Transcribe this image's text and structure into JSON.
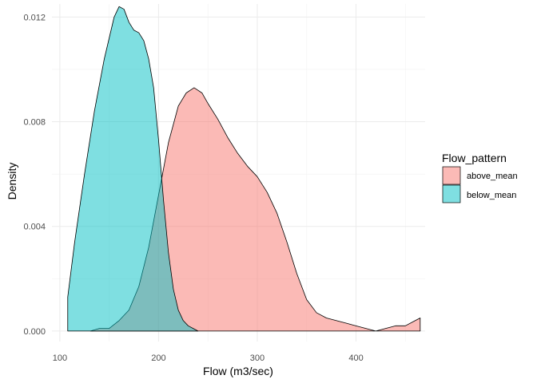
{
  "chart_data": {
    "type": "area",
    "title": "",
    "xlabel": "Flow (m3/sec)",
    "ylabel": "Density",
    "xlim": [
      92,
      470
    ],
    "ylim": [
      -0.0004,
      0.0125
    ],
    "x_ticks": [
      100,
      200,
      300,
      400
    ],
    "y_ticks": [
      0.0,
      0.004,
      0.008,
      0.012
    ],
    "y_tick_labels": [
      "0.000",
      "0.004",
      "0.008",
      "0.012"
    ],
    "grid": true,
    "legend": {
      "title": "Flow_pattern",
      "placement": "right"
    },
    "series": [
      {
        "name": "above_mean",
        "color": "#F8766D",
        "x": [
          131,
          140,
          150,
          160,
          170,
          180,
          190,
          200,
          210,
          220,
          228,
          236,
          244,
          250,
          260,
          270,
          280,
          290,
          300,
          310,
          320,
          330,
          340,
          350,
          360,
          370,
          380,
          390,
          400,
          410,
          420,
          430,
          440,
          450,
          460,
          465
        ],
        "y": [
          0.0,
          0.0001,
          0.0001,
          0.0004,
          0.0008,
          0.0017,
          0.0032,
          0.0052,
          0.0072,
          0.0086,
          0.0091,
          0.0093,
          0.0091,
          0.0087,
          0.0081,
          0.0074,
          0.0068,
          0.0063,
          0.0059,
          0.0053,
          0.0045,
          0.0034,
          0.0022,
          0.0012,
          0.0007,
          0.0005,
          0.0004,
          0.0003,
          0.0002,
          0.0001,
          0.0,
          0.0001,
          0.0002,
          0.0002,
          0.0004,
          0.0005
        ]
      },
      {
        "name": "below_mean",
        "color": "#00BFC4",
        "x": [
          108,
          115,
          125,
          135,
          145,
          155,
          160,
          165,
          170,
          175,
          180,
          185,
          190,
          195,
          200,
          205,
          210,
          215,
          220,
          225,
          230,
          235,
          240
        ],
        "y": [
          0.0013,
          0.0034,
          0.006,
          0.0084,
          0.0104,
          0.012,
          0.0124,
          0.0123,
          0.0118,
          0.0115,
          0.0114,
          0.0111,
          0.0104,
          0.0093,
          0.0073,
          0.005,
          0.003,
          0.0016,
          0.0008,
          0.0004,
          0.0002,
          0.0001,
          0.0
        ]
      }
    ]
  }
}
